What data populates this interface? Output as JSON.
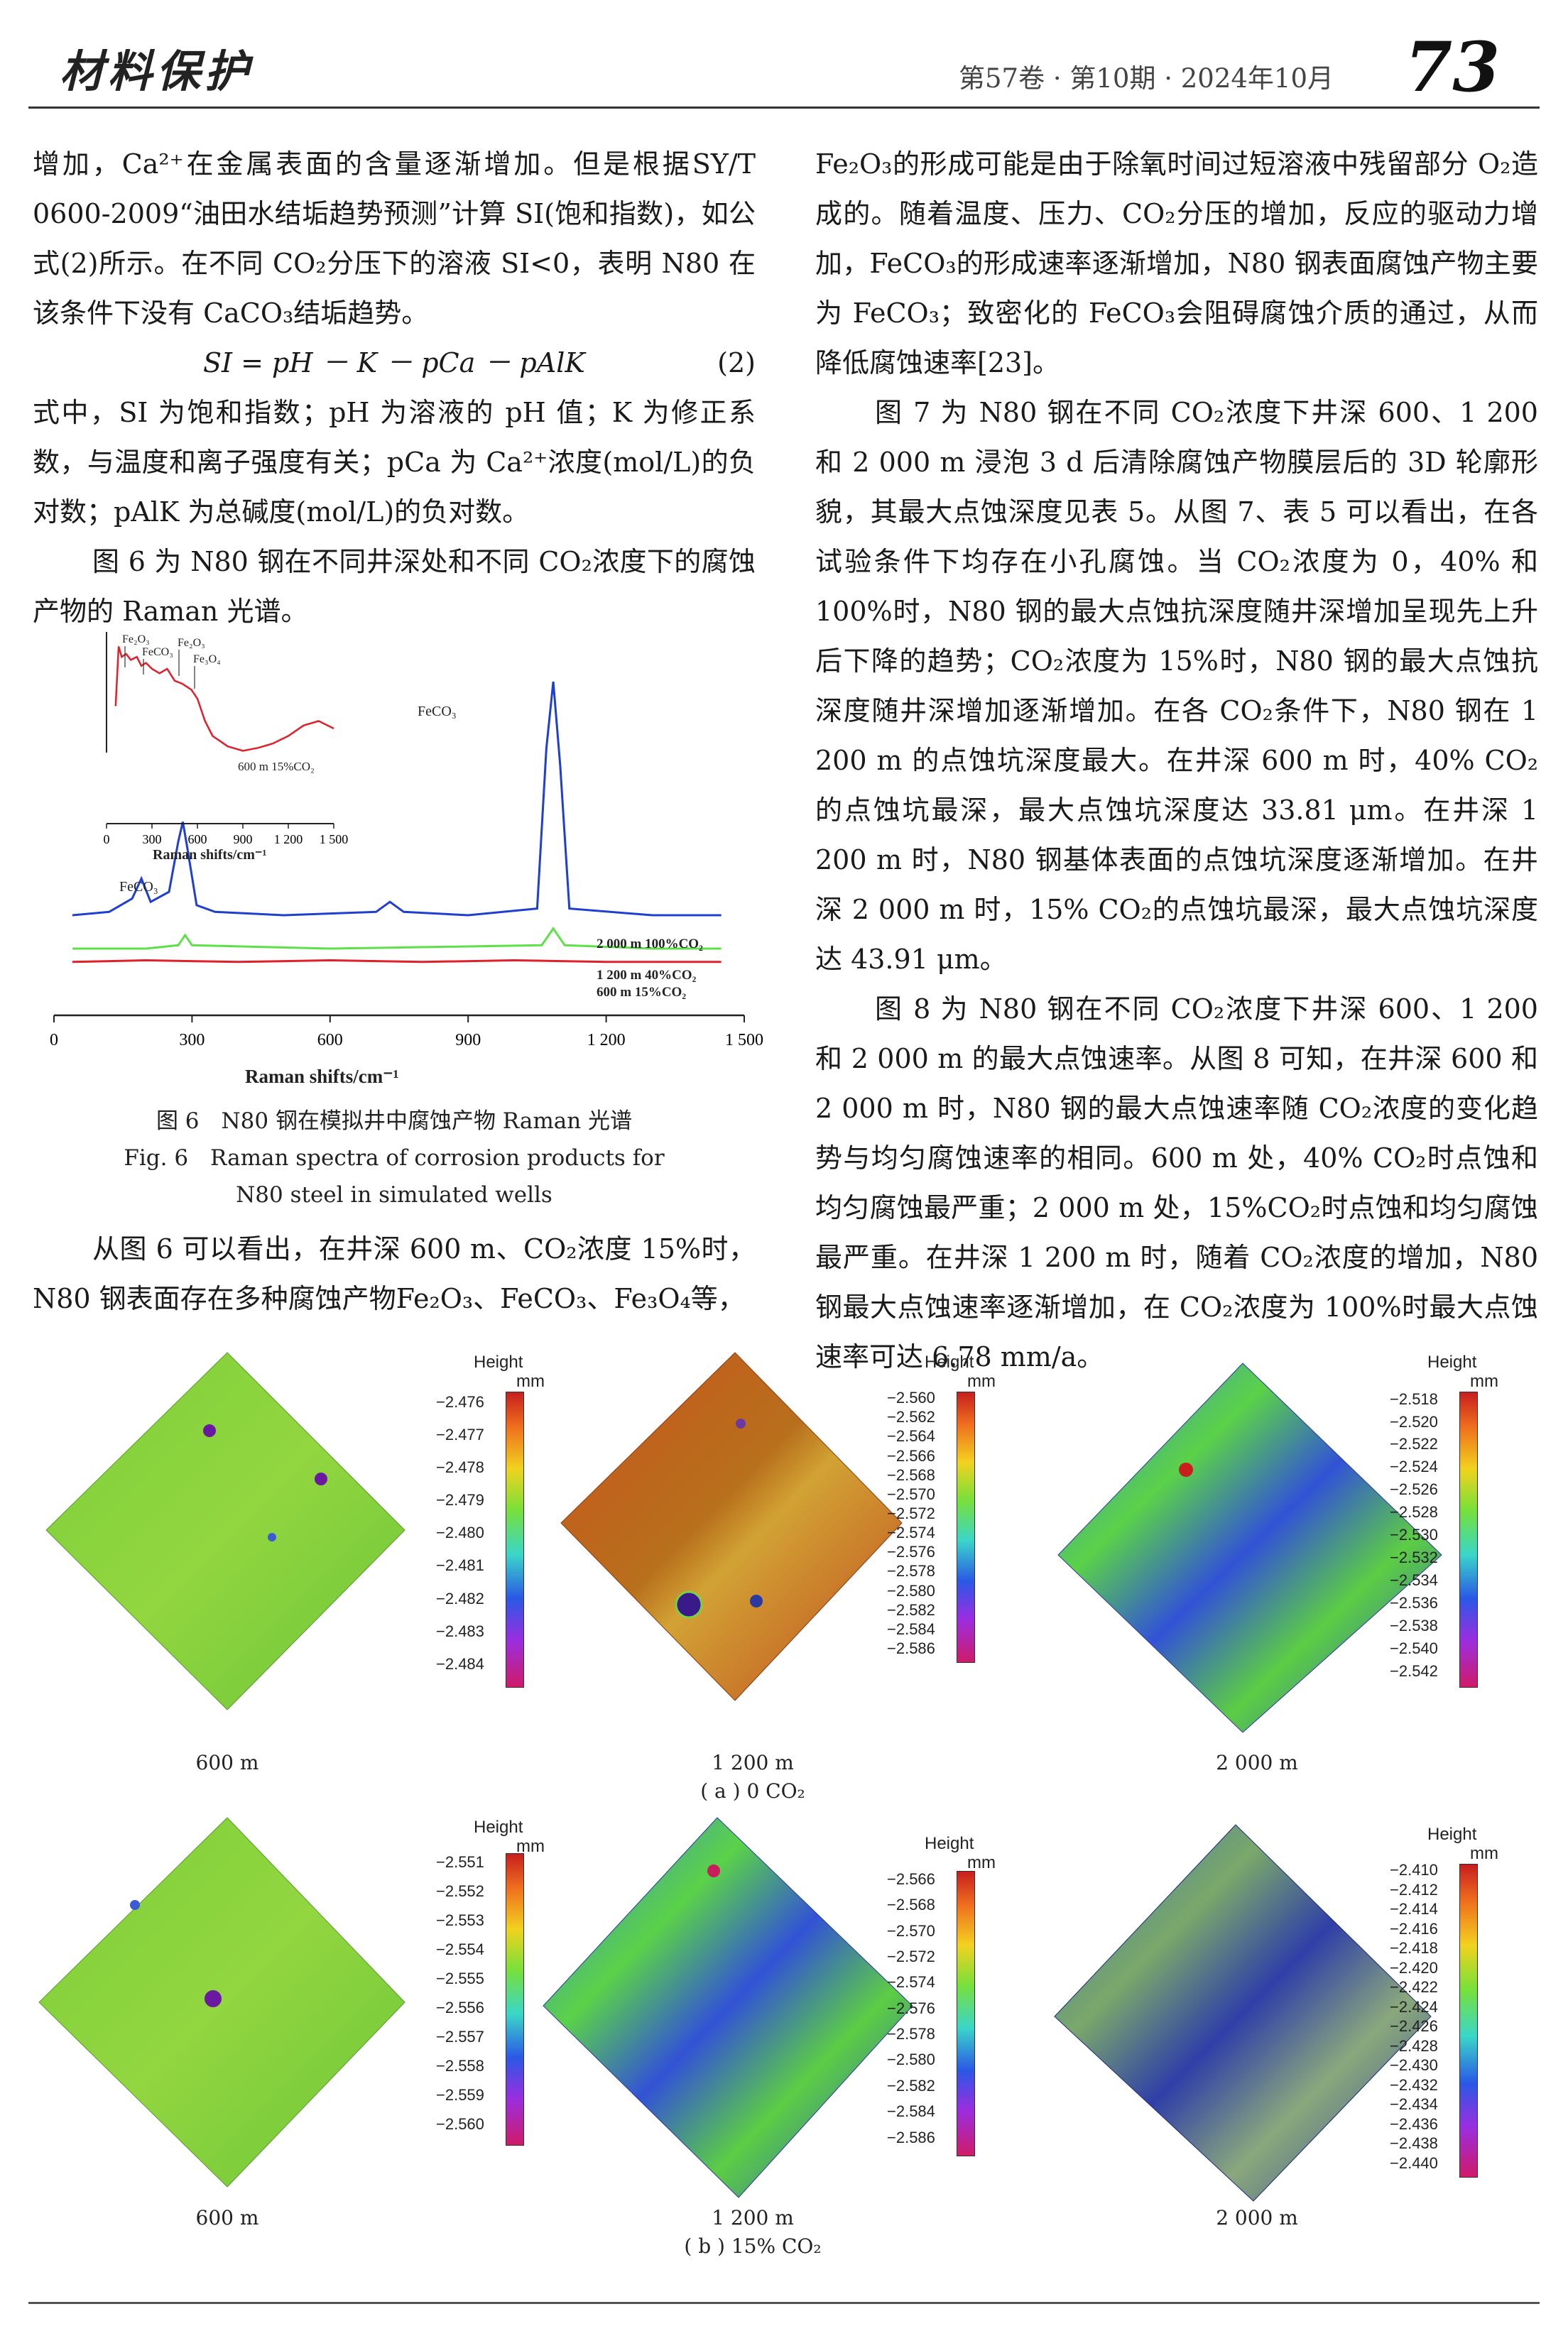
{
  "header": {
    "journal": "材料保护",
    "issue": "第57卷 · 第10期 · 2024年10月",
    "page": "73"
  },
  "left_column": {
    "p1": "增加，Ca²⁺在金属表面的含量逐渐增加。但是根据SY/T 0600-2009“油田水结垢趋势预测”计算 SI(饱和指数)，如公式(2)所示。在不同 CO₂分压下的溶液 SI<0，表明 N80 在该条件下没有 CaCO₃结垢趋势。",
    "equation": "SI = pH － K － pCa － pAlK",
    "equation_number": "(2)",
    "p2": "式中，SI 为饱和指数；pH 为溶液的 pH 值；K 为修正系数，与温度和离子强度有关；pCa 为 Ca²⁺浓度(mol/L)的负对数；pAlK 为总碱度(mol/L)的负对数。",
    "p3": "图 6 为 N80 钢在不同井深处和不同 CO₂浓度下的腐蚀产物的 Raman 光谱。",
    "p4": "从图 6 可以看出，在井深 600 m、CO₂浓度 15%时，N80 钢表面存在多种腐蚀产物Fe₂O₃、FeCO₃、Fe₃O₄等，"
  },
  "right_column": {
    "p1": "Fe₂O₃的形成可能是由于除氧时间过短溶液中残留部分 O₂造成的。随着温度、压力、CO₂分压的增加，反应的驱动力增加，FeCO₃的形成速率逐渐增加，N80 钢表面腐蚀产物主要为 FeCO₃；致密化的 FeCO₃会阻碍腐蚀介质的通过，从而降低腐蚀速率[23]。",
    "p2": "图 7 为 N80 钢在不同 CO₂浓度下井深 600、1 200 和 2 000 m 浸泡 3 d 后清除腐蚀产物膜层后的 3D 轮廓形貌，其最大点蚀深度见表 5。从图 7、表 5 可以看出，在各试验条件下均存在小孔腐蚀。当 CO₂浓度为 0，40% 和 100%时，N80 钢的最大点蚀抗深度随井深增加呈现先上升后下降的趋势；CO₂浓度为 15%时，N80 钢的最大点蚀抗深度随井深增加逐渐增加。在各 CO₂条件下，N80 钢在 1 200 m 的点蚀坑深度最大。在井深 600 m 时，40% CO₂的点蚀坑最深，最大点蚀坑深度达 33.81 μm。在井深 1 200 m 时，N80 钢基体表面的点蚀坑深度逐渐增加。在井深 2 000 m 时，15% CO₂的点蚀坑最深，最大点蚀坑深度达 43.91 μm。",
    "p3": "图 8 为 N80 钢在不同 CO₂浓度下井深 600、1 200 和 2 000 m 的最大点蚀速率。从图 8 可知，在井深 600 和 2 000 m 时，N80 钢的最大点蚀速率随 CO₂浓度的变化趋势与均匀腐蚀速率的相同。600 m 处，40% CO₂时点蚀和均匀腐蚀最严重；2 000 m 处，15%CO₂时点蚀和均匀腐蚀最严重。在井深 1 200 m 时，随着 CO₂浓度的增加，N80 钢最大点蚀速率逐渐增加，在 CO₂浓度为 100%时最大点蚀速率可达 6.78 mm/a。"
  },
  "figure6": {
    "caption_cn": "图 6　N80 钢在模拟井中腐蚀产物 Raman 光谱",
    "caption_en_1": "Fig. 6　Raman spectra of corrosion products for",
    "caption_en_2": "N80 steel in simulated wells",
    "inset_labels": {
      "fe2o3_a": "Fe₂O₃",
      "feco3_a": "FeCO₃",
      "fe2o3_b": "Fe₂O₃",
      "fe3o4": "Fe₃O₄",
      "sample": "600 m 15%CO₂"
    },
    "main_peak_labels": {
      "feco3_left": "FeCO₃",
      "feco3_right": "FeCO₃"
    }
  },
  "chart_data": [
    {
      "type": "line",
      "title": "",
      "xlabel": "Raman shifts/cm⁻¹",
      "ylabel": "",
      "xticks": [
        "0",
        "300",
        "600",
        "900",
        "1 200",
        "1 500"
      ],
      "xlim": [
        0,
        1500
      ],
      "series": [
        {
          "name": "2 000 m 100%CO₂",
          "color": "#1f3fd1",
          "x": [
            40,
            120,
            170,
            190,
            210,
            250,
            270,
            280,
            290,
            310,
            350,
            500,
            700,
            730,
            760,
            900,
            1050,
            1070,
            1085,
            1100,
            1120,
            1300,
            1450
          ],
          "y": [
            0.3,
            0.31,
            0.35,
            0.41,
            0.34,
            0.37,
            0.52,
            0.58,
            0.5,
            0.33,
            0.31,
            0.3,
            0.31,
            0.34,
            0.31,
            0.3,
            0.32,
            0.8,
            1.0,
            0.75,
            0.32,
            0.3,
            0.3
          ]
        },
        {
          "name": "1 200 m 40%CO₂",
          "color": "#5fe04a",
          "x": [
            40,
            200,
            270,
            285,
            300,
            600,
            1060,
            1085,
            1110,
            1300,
            1450
          ],
          "y": [
            0.2,
            0.2,
            0.21,
            0.24,
            0.21,
            0.2,
            0.21,
            0.26,
            0.21,
            0.2,
            0.2
          ]
        },
        {
          "name": "600 m 15%CO₂",
          "color": "#e0202a",
          "x": [
            40,
            200,
            400,
            600,
            800,
            1000,
            1200,
            1450
          ],
          "y": [
            0.16,
            0.165,
            0.16,
            0.165,
            0.16,
            0.165,
            0.16,
            0.16
          ]
        }
      ]
    },
    {
      "type": "line",
      "title": "",
      "xlabel": "Raman shifts/cm⁻¹",
      "xticks": [
        "0",
        "300",
        "600",
        "900",
        "1 200",
        "1 500"
      ],
      "xlim": [
        0,
        1500
      ],
      "series": [
        {
          "name": "600 m 15%CO₂",
          "color": "#e0202a",
          "x": [
            60,
            80,
            100,
            130,
            160,
            200,
            230,
            260,
            300,
            350,
            400,
            450,
            500,
            560,
            600,
            650,
            700,
            800,
            900,
            1000,
            1100,
            1200,
            1300,
            1400,
            1500
          ],
          "y": [
            0.55,
            0.95,
            0.88,
            0.9,
            0.86,
            0.88,
            0.82,
            0.84,
            0.8,
            0.77,
            0.8,
            0.72,
            0.7,
            0.66,
            0.6,
            0.45,
            0.35,
            0.28,
            0.25,
            0.27,
            0.3,
            0.35,
            0.42,
            0.45,
            0.4
          ]
        }
      ]
    }
  ],
  "figure7": {
    "legend_title_1": "Height",
    "legend_title_2": "mm",
    "depth_labels": [
      "600 m",
      "1 200 m",
      "2 000 m"
    ],
    "row_a_label": "( a ) 0 CO₂",
    "row_b_label": "( b ) 15% CO₂",
    "row_a": [
      {
        "ticks": [
          "−2.476",
          "−2.477",
          "−2.478",
          "−2.479",
          "−2.480",
          "−2.481",
          "−2.482",
          "−2.483",
          "−2.484"
        ]
      },
      {
        "ticks": [
          "−2.560",
          "−2.562",
          "−2.564",
          "−2.566",
          "−2.568",
          "−2.570",
          "−2.572",
          "−2.574",
          "−2.576",
          "−2.578",
          "−2.580",
          "−2.582",
          "−2.584",
          "−2.586"
        ]
      },
      {
        "ticks": [
          "−2.518",
          "−2.520",
          "−2.522",
          "−2.524",
          "−2.526",
          "−2.528",
          "−2.530",
          "−2.532",
          "−2.534",
          "−2.536",
          "−2.538",
          "−2.540",
          "−2.542"
        ]
      }
    ],
    "row_b": [
      {
        "ticks": [
          "−2.551",
          "−2.552",
          "−2.553",
          "−2.554",
          "−2.555",
          "−2.556",
          "−2.557",
          "−2.558",
          "−2.559",
          "−2.560"
        ]
      },
      {
        "ticks": [
          "−2.566",
          "−2.568",
          "−2.570",
          "−2.572",
          "−2.574",
          "−2.576",
          "−2.578",
          "−2.580",
          "−2.582",
          "−2.584",
          "−2.586"
        ]
      },
      {
        "ticks": [
          "−2.410",
          "−2.412",
          "−2.414",
          "−2.416",
          "−2.418",
          "−2.420",
          "−2.422",
          "−2.424",
          "−2.426",
          "−2.428",
          "−2.430",
          "−2.432",
          "−2.434",
          "−2.436",
          "−2.438",
          "−2.440"
        ]
      }
    ]
  }
}
